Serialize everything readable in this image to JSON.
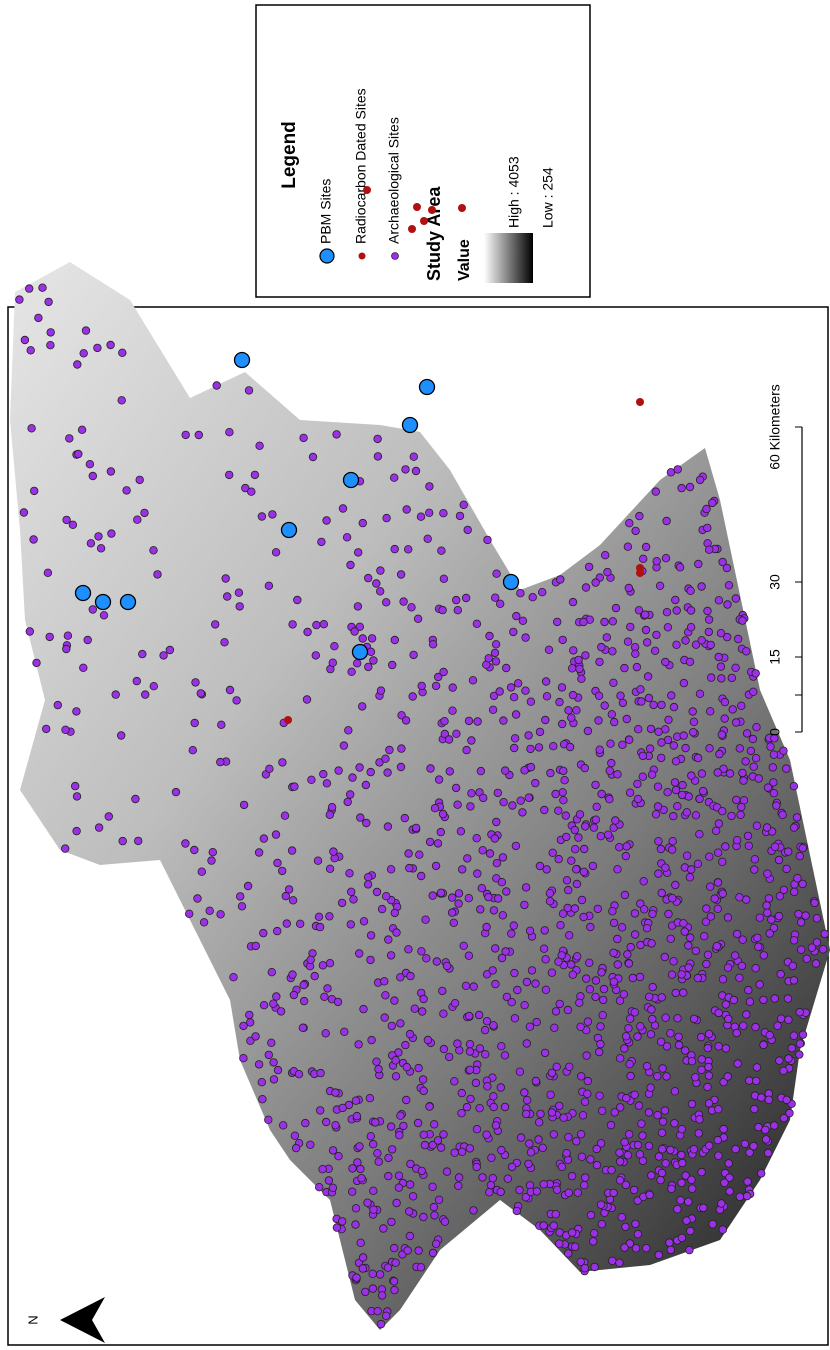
{
  "legend": {
    "title": "Legend",
    "items": [
      {
        "label": "PBM Sites"
      },
      {
        "label": "Radiocarbon Dated Sites"
      },
      {
        "label": "Archaeological Sites"
      }
    ]
  },
  "study_area": {
    "title": "Study Area",
    "value_label": "Value",
    "high": "High : 4053",
    "low": "Low : 254"
  },
  "scale_bar": {
    "labels": [
      "0",
      "15",
      "30"
    ],
    "unit_label": "60 Kilometers"
  },
  "north": "N"
}
